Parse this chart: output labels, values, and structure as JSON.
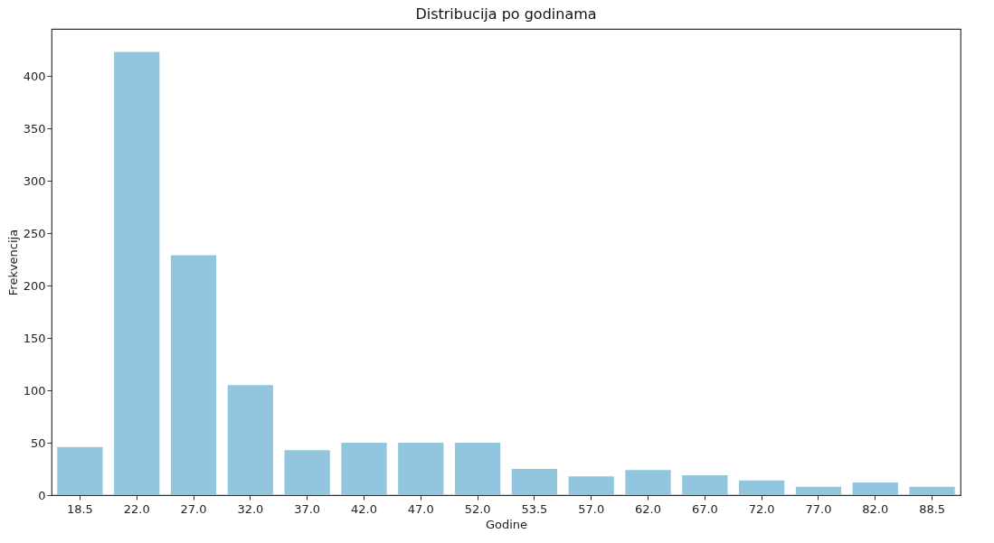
{
  "chart_data": {
    "type": "bar",
    "title": "Distribucija po godinama",
    "xlabel": "Godine",
    "ylabel": "Frekvencija",
    "categories": [
      "18.5",
      "22.0",
      "27.0",
      "32.0",
      "37.0",
      "42.0",
      "47.0",
      "52.0",
      "53.5",
      "57.0",
      "62.0",
      "67.0",
      "72.0",
      "77.0",
      "82.0",
      "88.5"
    ],
    "values": [
      46,
      423,
      229,
      105,
      43,
      50,
      50,
      50,
      25,
      18,
      24,
      19,
      14,
      8,
      12,
      8
    ],
    "color": "#92c6df",
    "ylim": [
      0,
      445
    ],
    "yticks": [
      0,
      50,
      100,
      150,
      200,
      250,
      300,
      350,
      400
    ],
    "grid": false
  }
}
